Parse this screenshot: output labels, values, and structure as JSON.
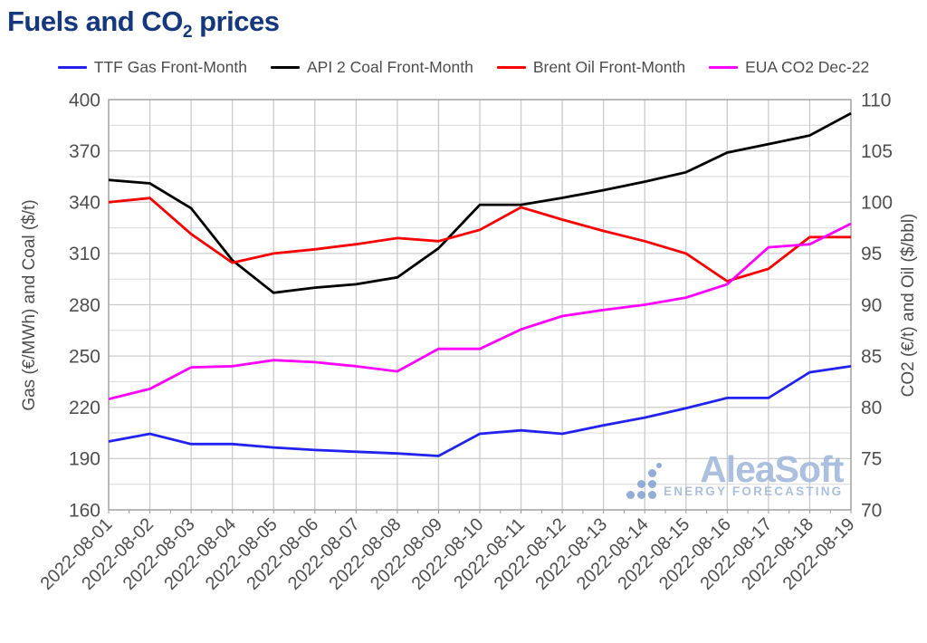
{
  "title": {
    "prefix": "Fuels and CO",
    "sub": "2",
    "suffix": " prices",
    "color": "#14377d"
  },
  "watermark": {
    "brand": "AleaSoft",
    "tagline": "ENERGY FORECASTING"
  },
  "chart_data": {
    "type": "line",
    "x_labels": [
      "2022-08-01",
      "2022-08-02",
      "2022-08-03",
      "2022-08-04",
      "2022-08-05",
      "2022-08-06",
      "2022-08-07",
      "2022-08-08",
      "2022-08-09",
      "2022-08-10",
      "2022-08-11",
      "2022-08-12",
      "2022-08-13",
      "2022-08-14",
      "2022-08-15",
      "2022-08-16",
      "2022-08-17",
      "2022-08-18",
      "2022-08-19"
    ],
    "axes": {
      "left": {
        "label": "Gas (€/MWh) and Coal ($/t)",
        "min": 160,
        "max": 400,
        "major_step": 30,
        "minor_step": 15,
        "ticks": [
          400,
          370,
          340,
          310,
          280,
          250,
          220,
          190,
          160
        ]
      },
      "right": {
        "label": "CO2 (€/t) and Oil ($/bbl)",
        "min": 70,
        "max": 110,
        "major_step": 5,
        "minor_step": 2.5,
        "ticks": [
          110,
          105,
          100,
          95,
          90,
          85,
          80,
          75,
          70
        ]
      }
    },
    "grid": {
      "major_color": "#cccccc",
      "minor_color": "#dddddd",
      "vertical_color": "#c6c6c6",
      "border_color": "#a0a0a0",
      "tick_color": "#999999"
    },
    "text_color": "#4f4f4f",
    "legend_position": "top",
    "series": [
      {
        "name": "TTF Gas Front-Month",
        "axis": "left",
        "color": "#2222f0",
        "values": [
          200,
          204.5,
          198.5,
          198.5,
          196.5,
          195,
          194,
          193,
          191.5,
          204.5,
          206.5,
          204.5,
          209.5,
          214,
          219.5,
          225.5,
          225.5,
          240.5,
          244
        ]
      },
      {
        "name": "API 2 Coal Front-Month",
        "axis": "left",
        "color": "#000000",
        "values": [
          353,
          351,
          336.5,
          306,
          287,
          290,
          292,
          296,
          313,
          338.5,
          338.5,
          342.5,
          347,
          352,
          357.5,
          369,
          374,
          379,
          392
        ]
      },
      {
        "name": "Brent Oil Front-Month",
        "axis": "right",
        "color": "#fa0000",
        "values": [
          100,
          100.4,
          96.9,
          94.1,
          95,
          95.4,
          95.9,
          96.5,
          96.2,
          97.3,
          99.5,
          98.3,
          97.2,
          96.2,
          95,
          92.3,
          93.5,
          96.6,
          96.6
        ]
      },
      {
        "name": "EUA CO2 Dec-22",
        "axis": "right",
        "color": "#ff00ff",
        "values": [
          80.8,
          81.8,
          83.9,
          84,
          84.6,
          84.4,
          84,
          83.5,
          85.7,
          85.7,
          87.6,
          88.9,
          89.5,
          90,
          90.7,
          92,
          95.6,
          95.9,
          97.9
        ]
      }
    ]
  }
}
